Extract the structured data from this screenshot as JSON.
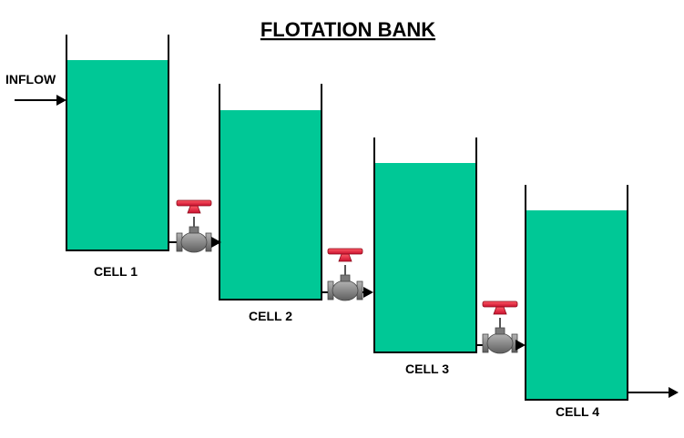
{
  "title": "FLOTATION BANK",
  "inflow_label": "INFLOW",
  "colors": {
    "liquid": "#00c896",
    "wall": "#000000",
    "valve_body": "#8a8a8a",
    "valve_handwheel": "#e8243a",
    "background": "#ffffff"
  },
  "cells": [
    {
      "label": "CELL 1"
    },
    {
      "label": "CELL 2"
    },
    {
      "label": "CELL 3"
    },
    {
      "label": "CELL 4"
    }
  ],
  "valves": [
    {
      "icon": "control-valve-icon"
    },
    {
      "icon": "control-valve-icon"
    },
    {
      "icon": "control-valve-icon"
    }
  ]
}
